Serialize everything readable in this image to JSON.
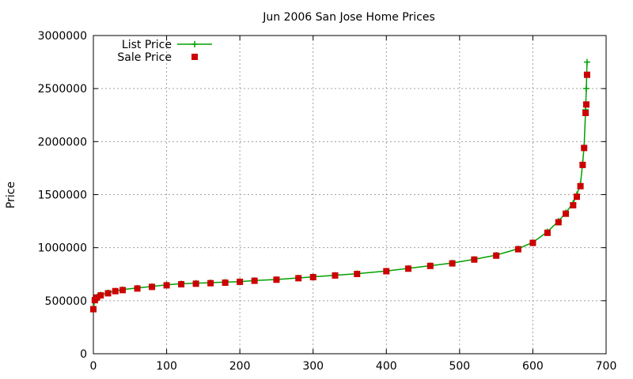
{
  "chart_data": {
    "type": "scatter",
    "title": "Jun 2006 San Jose Home Prices",
    "xlabel": "",
    "ylabel": "Price",
    "xlim": [
      0,
      700
    ],
    "ylim": [
      0,
      3000000
    ],
    "xticks": [
      "0",
      "100",
      "200",
      "300",
      "400",
      "500",
      "600",
      "700"
    ],
    "yticks": [
      "0",
      "500000",
      "1000000",
      "1500000",
      "2000000",
      "2500000",
      "3000000"
    ],
    "grid": true,
    "legend_position": "top-left",
    "series": [
      {
        "name": "List Price",
        "style": "line-with-plus-markers",
        "color": "#00a000",
        "x": [
          0,
          2,
          5,
          10,
          20,
          30,
          40,
          60,
          80,
          100,
          120,
          140,
          160,
          180,
          200,
          220,
          250,
          280,
          300,
          330,
          360,
          400,
          430,
          460,
          490,
          520,
          550,
          580,
          600,
          620,
          635,
          645,
          655,
          660,
          665,
          668,
          670,
          672,
          673,
          674
        ],
        "y": [
          420000,
          510000,
          535000,
          555000,
          575000,
          592000,
          605000,
          620000,
          635000,
          650000,
          660000,
          665000,
          670000,
          675000,
          680000,
          690000,
          700000,
          715000,
          725000,
          740000,
          755000,
          780000,
          805000,
          830000,
          855000,
          890000,
          930000,
          990000,
          1050000,
          1150000,
          1250000,
          1330000,
          1420000,
          1500000,
          1600000,
          1800000,
          1950000,
          2300000,
          2500000,
          2750000
        ]
      },
      {
        "name": "Sale Price",
        "style": "square-markers",
        "color": "#cc0000",
        "x": [
          0,
          2,
          5,
          10,
          20,
          30,
          40,
          60,
          80,
          100,
          120,
          140,
          160,
          180,
          200,
          220,
          250,
          280,
          300,
          330,
          360,
          400,
          430,
          460,
          490,
          520,
          550,
          580,
          600,
          620,
          635,
          645,
          655,
          660,
          665,
          668,
          670,
          672,
          673,
          674
        ],
        "y": [
          420000,
          505000,
          530000,
          550000,
          570000,
          590000,
          600000,
          615000,
          630000,
          645000,
          655000,
          660000,
          665000,
          670000,
          678000,
          688000,
          698000,
          712000,
          722000,
          738000,
          752000,
          778000,
          802000,
          828000,
          852000,
          888000,
          925000,
          985000,
          1045000,
          1140000,
          1240000,
          1320000,
          1400000,
          1480000,
          1580000,
          1780000,
          1940000,
          2270000,
          2350000,
          2630000
        ]
      }
    ]
  }
}
